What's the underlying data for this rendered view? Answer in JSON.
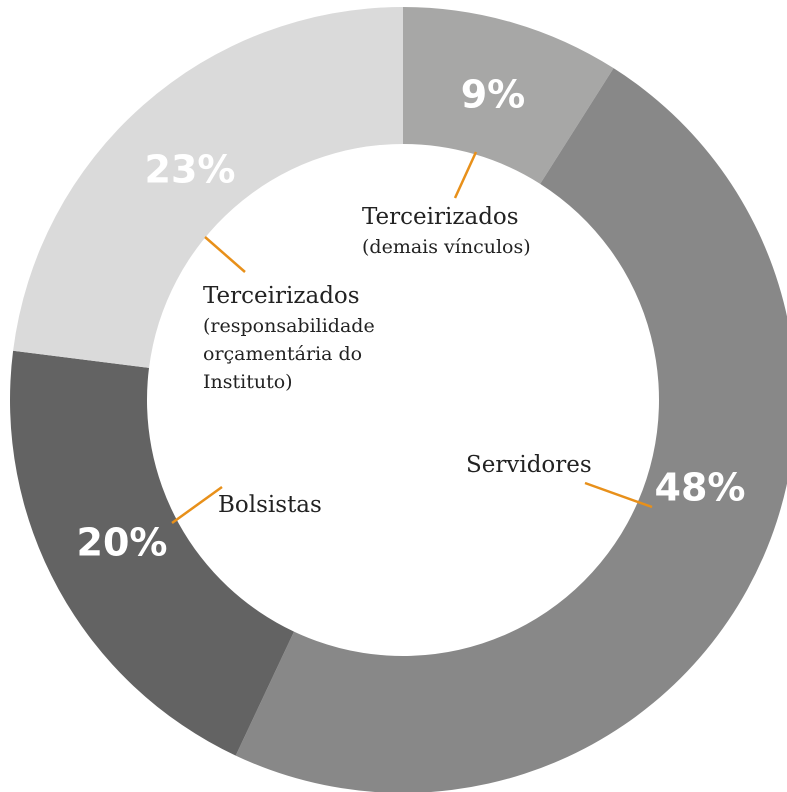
{
  "chart_data": {
    "type": "donut",
    "categories": [
      "Terceirizados",
      "Servidores",
      "Bolsistas",
      "Terceirizados"
    ],
    "category_notes": [
      [
        "(demais vínculos)"
      ],
      [],
      [],
      [
        "(responsabilidade",
        "orçamentária do",
        "Instituto)"
      ]
    ],
    "values": [
      9,
      48,
      20,
      23
    ],
    "value_labels": [
      "9%",
      "48%",
      "20%",
      "23%"
    ],
    "colors": [
      "#a7a7a6",
      "#888888",
      "#636363",
      "#dadada"
    ]
  }
}
